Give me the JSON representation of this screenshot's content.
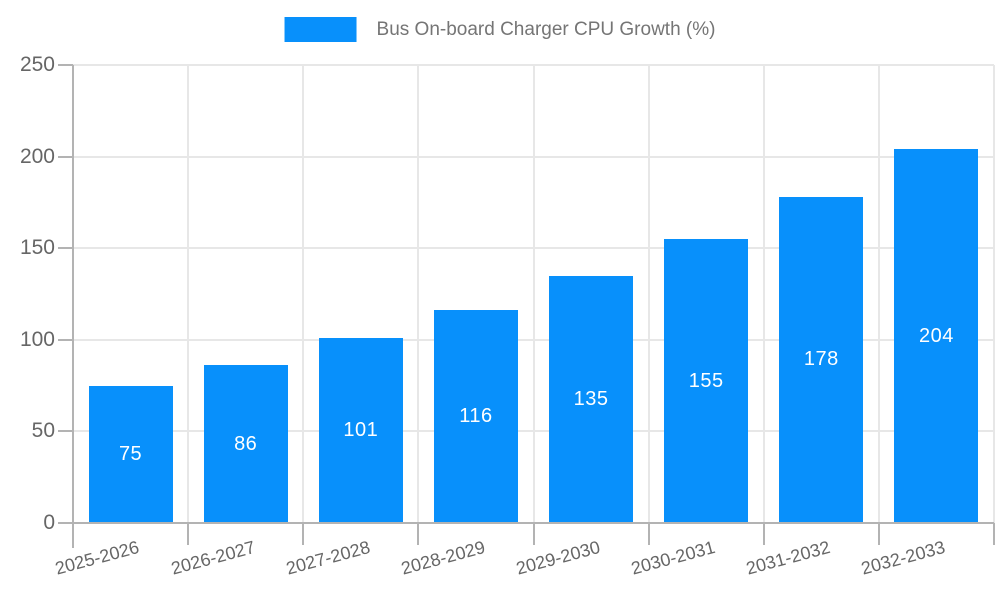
{
  "legend": {
    "label": "Bus On-board Charger CPU Growth (%)"
  },
  "chart_data": {
    "type": "bar",
    "title": "Bus On-board Charger CPU Growth (%)",
    "categories": [
      "2025-2026",
      "2026-2027",
      "2027-2028",
      "2028-2029",
      "2029-2030",
      "2030-2031",
      "2031-2032",
      "2032-2033"
    ],
    "series": [
      {
        "name": "Bus On-board Charger CPU Growth (%)",
        "values": [
          75,
          86,
          101,
          116,
          135,
          155,
          178,
          204
        ]
      }
    ],
    "values": [
      75,
      86,
      101,
      116,
      135,
      155,
      178,
      204
    ],
    "value_labels": "inside-center",
    "xlabel": "",
    "ylabel": "",
    "ylim": [
      0,
      250
    ],
    "yticks": [
      0,
      50,
      100,
      150,
      200,
      250
    ],
    "grid": "both",
    "legend_position": "top-center",
    "x_tick_rotation_deg": -15,
    "colors": {
      "bar": "#0890FB",
      "value_label": "#FFFFFF",
      "grid_line": "#E7E7E7",
      "axis_line": "#B3B3B3",
      "tick_label": "#666666",
      "legend_text": "#757575",
      "background": "#FFFFFF"
    }
  }
}
